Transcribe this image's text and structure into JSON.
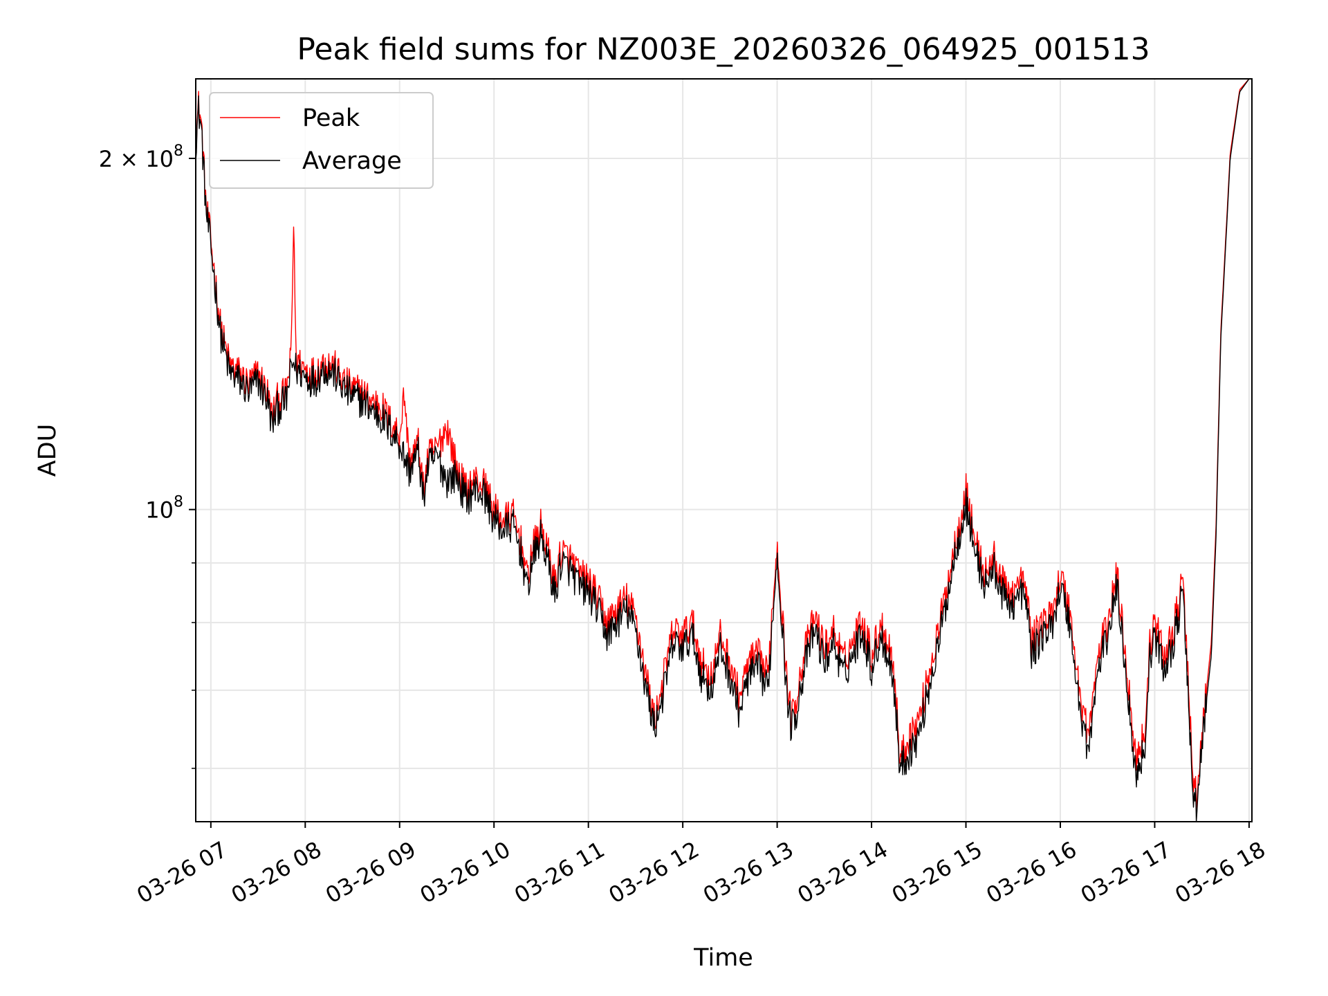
{
  "chart_data": {
    "type": "line",
    "title": "Peak field sums for NZ003E_20260326_064925_001513",
    "xlabel": "Time",
    "ylabel": "ADU",
    "y_scale": "log",
    "ylim": [
      54000000,
      234000000
    ],
    "xlim": [
      6.84,
      18.03
    ],
    "grid": true,
    "legend_position": "upper left",
    "x_ticks": [
      {
        "value": 7,
        "label": "03-26 07"
      },
      {
        "value": 8,
        "label": "03-26 08"
      },
      {
        "value": 9,
        "label": "03-26 09"
      },
      {
        "value": 10,
        "label": "03-26 10"
      },
      {
        "value": 11,
        "label": "03-26 11"
      },
      {
        "value": 12,
        "label": "03-26 12"
      },
      {
        "value": 13,
        "label": "03-26 13"
      },
      {
        "value": 14,
        "label": "03-26 14"
      },
      {
        "value": 15,
        "label": "03-26 15"
      },
      {
        "value": 16,
        "label": "03-26 16"
      },
      {
        "value": 17,
        "label": "03-26 17"
      },
      {
        "value": 18,
        "label": "03-26 18"
      }
    ],
    "y_ticks": [
      {
        "value": 100000000,
        "base": "10",
        "exp": "8",
        "mantissa": ""
      },
      {
        "value": 200000000,
        "base": "10",
        "exp": "8",
        "mantissa": "2 × "
      }
    ],
    "y_minor_ticks": [
      60000000,
      70000000,
      80000000,
      90000000
    ],
    "x_hours": [
      6.84,
      6.87,
      6.9,
      6.95,
      7.0,
      7.1,
      7.15,
      7.2,
      7.3,
      7.4,
      7.5,
      7.6,
      7.65,
      7.7,
      7.8,
      7.85,
      7.88,
      7.9,
      8.0,
      8.1,
      8.2,
      8.3,
      8.4,
      8.5,
      8.6,
      8.7,
      8.8,
      8.9,
      9.0,
      9.05,
      9.1,
      9.2,
      9.25,
      9.3,
      9.4,
      9.5,
      9.6,
      9.7,
      9.8,
      9.9,
      10.0,
      10.1,
      10.2,
      10.3,
      10.35,
      10.4,
      10.5,
      10.6,
      10.65,
      10.7,
      10.8,
      10.9,
      11.0,
      11.1,
      11.2,
      11.3,
      11.4,
      11.5,
      11.6,
      11.7,
      11.8,
      11.9,
      12.0,
      12.1,
      12.2,
      12.3,
      12.4,
      12.5,
      12.6,
      12.7,
      12.8,
      12.9,
      13.0,
      13.1,
      13.15,
      13.2,
      13.3,
      13.4,
      13.5,
      13.6,
      13.7,
      13.8,
      13.9,
      14.0,
      14.1,
      14.2,
      14.25,
      14.3,
      14.4,
      14.5,
      14.6,
      14.7,
      14.8,
      14.9,
      15.0,
      15.1,
      15.2,
      15.3,
      15.4,
      15.5,
      15.6,
      15.65,
      15.7,
      15.8,
      15.9,
      16.0,
      16.1,
      16.2,
      16.3,
      16.4,
      16.5,
      16.6,
      16.7,
      16.8,
      16.9,
      16.95,
      17.0,
      17.1,
      17.2,
      17.3,
      17.4,
      17.45,
      17.5,
      17.6,
      17.65,
      17.7,
      17.8,
      17.9,
      18.0
    ],
    "series": [
      {
        "name": "Average",
        "color": "#000000",
        "values": [
          206000000,
          220000000,
          212000000,
          180000000,
          168000000,
          142000000,
          136000000,
          131000000,
          129000000,
          126000000,
          129000000,
          124000000,
          118000000,
          122000000,
          124000000,
          132000000,
          134000000,
          132000000,
          130000000,
          129000000,
          132000000,
          131000000,
          127000000,
          125000000,
          124000000,
          122000000,
          120000000,
          117000000,
          114000000,
          111000000,
          108000000,
          112000000,
          102000000,
          109000000,
          111000000,
          106000000,
          107000000,
          102000000,
          104000000,
          103000000,
          98000000,
          96000000,
          97000000,
          91000000,
          85000000,
          90000000,
          95000000,
          88000000,
          84000000,
          90000000,
          89000000,
          86000000,
          85000000,
          82000000,
          78000000,
          80000000,
          82000000,
          79000000,
          71000000,
          65000000,
          70000000,
          77000000,
          76000000,
          78000000,
          72000000,
          70000000,
          76000000,
          72000000,
          67000000,
          72000000,
          73000000,
          70000000,
          92000000,
          70000000,
          65000000,
          67000000,
          74000000,
          79000000,
          74000000,
          77000000,
          72000000,
          75000000,
          79000000,
          73000000,
          78000000,
          74000000,
          69000000,
          60000000,
          62000000,
          64000000,
          70000000,
          76000000,
          84000000,
          93000000,
          101000000,
          92000000,
          86000000,
          89000000,
          84000000,
          83000000,
          85000000,
          82000000,
          75000000,
          78000000,
          79000000,
          86000000,
          80000000,
          68000000,
          62000000,
          73000000,
          78000000,
          86000000,
          72000000,
          59000000,
          63000000,
          75000000,
          78000000,
          73000000,
          77000000,
          85000000,
          58000000,
          55000000,
          63000000,
          75000000,
          95000000,
          140000000,
          200000000,
          228000000,
          234000000
        ]
      },
      {
        "name": "Peak",
        "color": "#ff0000",
        "values": [
          208000000,
          222000000,
          214000000,
          182000000,
          170000000,
          144000000,
          138000000,
          133000000,
          131000000,
          128000000,
          131000000,
          126000000,
          120000000,
          124000000,
          126000000,
          135000000,
          180000000,
          135000000,
          132000000,
          131000000,
          134000000,
          133000000,
          129000000,
          127000000,
          126000000,
          124000000,
          123000000,
          119000000,
          116000000,
          126000000,
          110000000,
          114000000,
          104000000,
          111000000,
          113000000,
          118000000,
          109000000,
          104000000,
          106000000,
          105000000,
          100000000,
          98000000,
          99000000,
          93000000,
          87000000,
          92000000,
          97000000,
          90000000,
          86000000,
          92000000,
          91000000,
          88000000,
          87000000,
          84000000,
          80000000,
          82000000,
          84000000,
          81000000,
          73000000,
          66000000,
          72000000,
          79000000,
          78000000,
          80000000,
          74000000,
          72000000,
          78000000,
          74000000,
          69000000,
          74000000,
          75000000,
          72000000,
          94000000,
          72000000,
          66000000,
          69000000,
          76000000,
          81000000,
          76000000,
          79000000,
          74000000,
          77000000,
          81000000,
          75000000,
          80000000,
          76000000,
          71000000,
          61000000,
          64000000,
          66000000,
          72000000,
          78000000,
          86000000,
          95000000,
          104000000,
          94000000,
          88000000,
          91000000,
          86000000,
          85000000,
          87000000,
          84000000,
          77000000,
          80000000,
          81000000,
          88000000,
          82000000,
          70000000,
          64000000,
          75000000,
          80000000,
          88000000,
          74000000,
          61000000,
          65000000,
          77000000,
          80000000,
          75000000,
          79000000,
          87000000,
          60000000,
          56000000,
          64000000,
          77000000,
          97000000,
          142000000,
          202000000,
          229000000,
          234000000
        ]
      }
    ],
    "legend": [
      {
        "label": "Peak",
        "color": "#ff0000"
      },
      {
        "label": "Average",
        "color": "#000000"
      }
    ]
  }
}
